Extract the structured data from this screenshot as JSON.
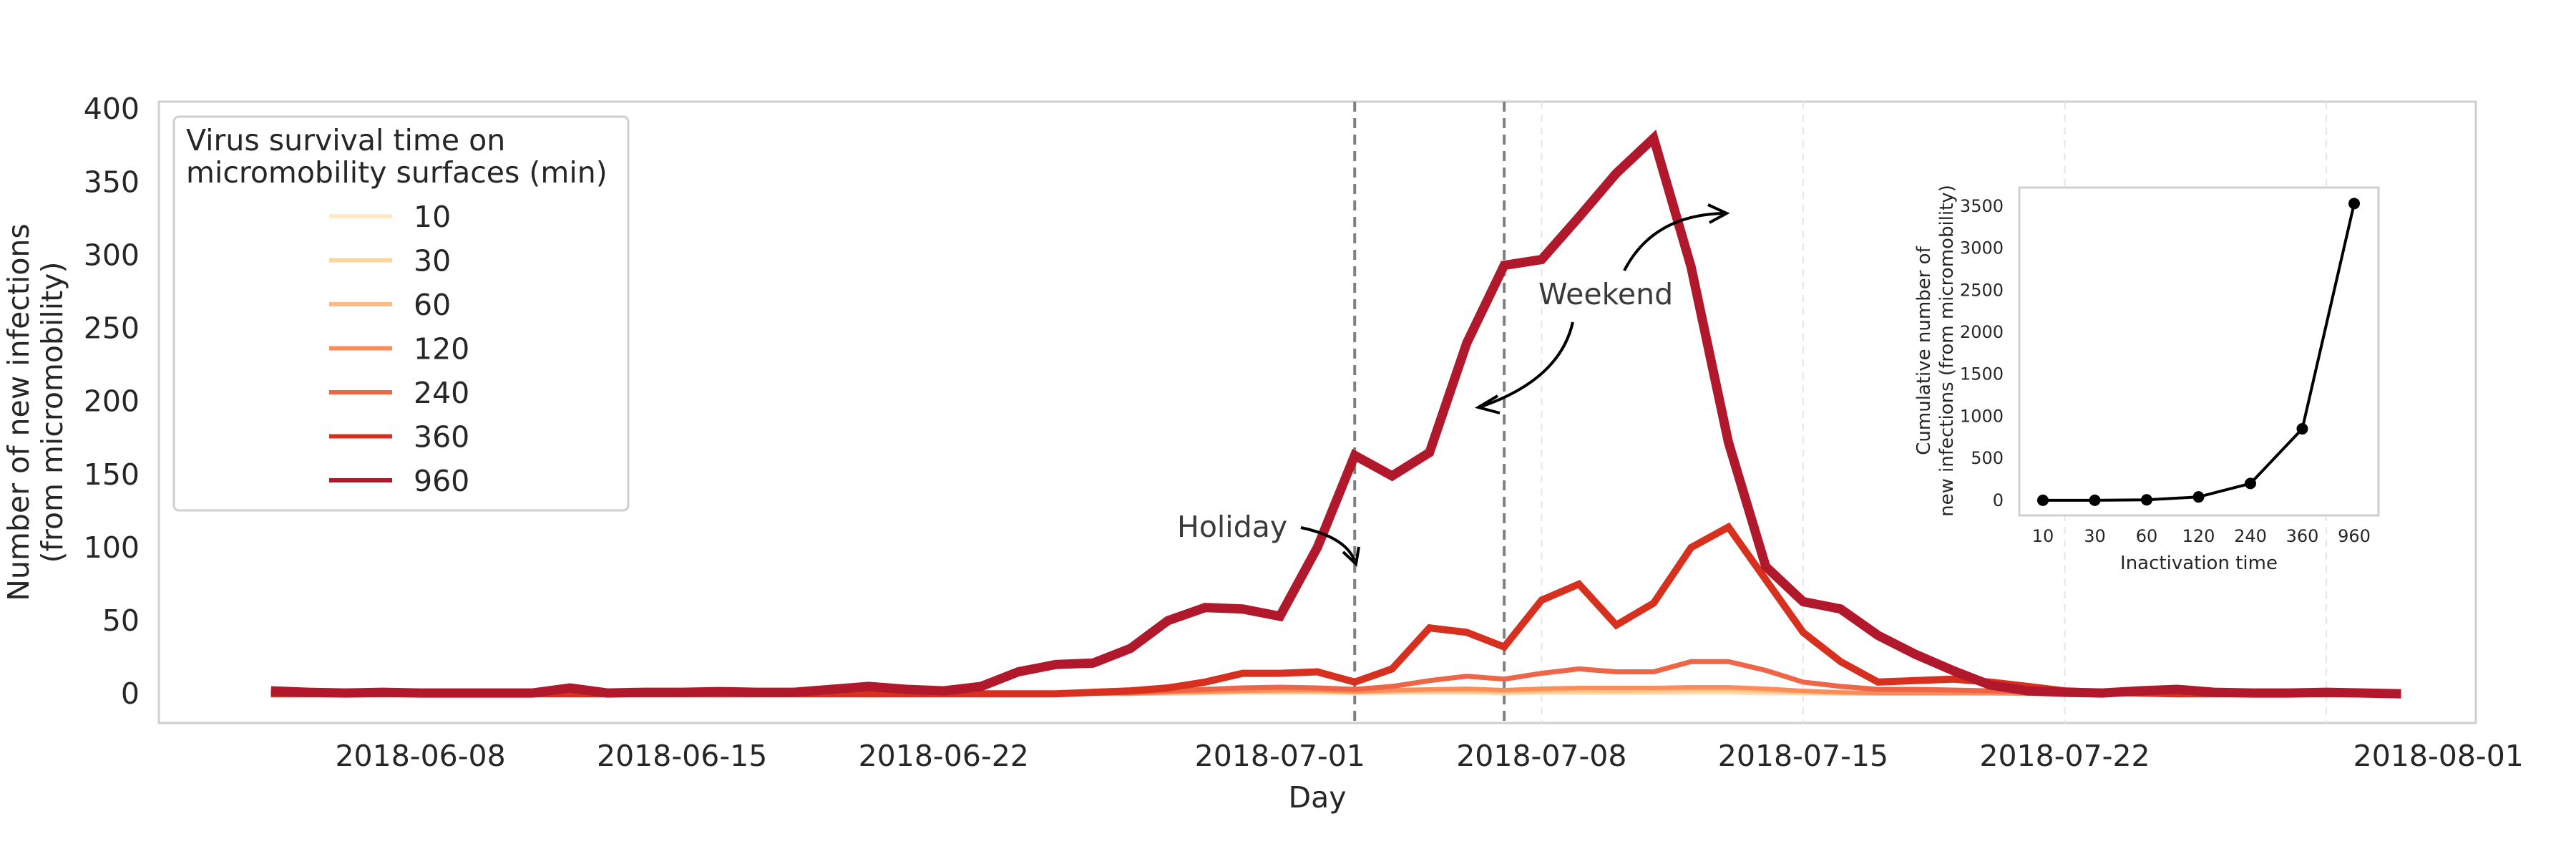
{
  "chart_data": [
    {
      "type": "line",
      "xlabel": "Day",
      "ylabel_lines": [
        "Number of new infections",
        "(from micromobility)"
      ],
      "ylim": [
        -20,
        405
      ],
      "xlim": [
        "2018-06-01",
        "2018-08-02"
      ],
      "yticks": [
        0,
        50,
        100,
        150,
        200,
        250,
        300,
        350,
        400
      ],
      "xticks": [
        "2018-06-08",
        "2018-06-15",
        "2018-06-22",
        "2018-07-01",
        "2018-07-08",
        "2018-07-15",
        "2018-07-22",
        "2018-08-01"
      ],
      "grid": "off",
      "legend": {
        "placement": "top-left",
        "title_lines": [
          "Virus survival time on",
          "micromobility surfaces (min)"
        ]
      },
      "x": [
        "2018-06-04",
        "2018-06-05",
        "2018-06-06",
        "2018-06-07",
        "2018-06-08",
        "2018-06-09",
        "2018-06-10",
        "2018-06-11",
        "2018-06-12",
        "2018-06-13",
        "2018-06-14",
        "2018-06-15",
        "2018-06-16",
        "2018-06-17",
        "2018-06-18",
        "2018-06-19",
        "2018-06-20",
        "2018-06-21",
        "2018-06-22",
        "2018-06-23",
        "2018-06-24",
        "2018-06-25",
        "2018-06-26",
        "2018-06-27",
        "2018-06-28",
        "2018-06-29",
        "2018-06-30",
        "2018-07-01",
        "2018-07-02",
        "2018-07-03",
        "2018-07-04",
        "2018-07-05",
        "2018-07-06",
        "2018-07-07",
        "2018-07-08",
        "2018-07-09",
        "2018-07-10",
        "2018-07-11",
        "2018-07-12",
        "2018-07-13",
        "2018-07-14",
        "2018-07-15",
        "2018-07-16",
        "2018-07-17",
        "2018-07-18",
        "2018-07-19",
        "2018-07-20",
        "2018-07-21",
        "2018-07-22",
        "2018-07-23",
        "2018-07-24",
        "2018-07-25",
        "2018-07-26",
        "2018-07-27",
        "2018-07-28",
        "2018-07-29",
        "2018-07-30",
        "2018-07-31"
      ],
      "series": [
        {
          "name": "10",
          "color": "#fee8c8",
          "width": 5,
          "values": [
            0,
            0,
            0,
            0,
            0,
            0,
            0,
            0,
            0,
            0,
            0,
            0,
            0,
            0,
            0,
            0,
            0,
            0,
            0,
            0,
            0,
            0,
            0,
            0,
            0,
            0,
            0.5,
            0.5,
            0.5,
            0,
            0.5,
            0.5,
            0.5,
            0,
            0.5,
            0.5,
            0.5,
            0.5,
            0.5,
            0.5,
            0,
            0,
            0,
            0,
            0,
            0,
            0,
            0,
            0,
            0,
            0,
            0,
            0,
            0,
            0,
            0,
            0,
            0
          ]
        },
        {
          "name": "30",
          "color": "#fdd49e",
          "width": 5,
          "values": [
            0,
            0,
            0,
            0,
            0,
            0,
            0,
            0,
            0,
            0,
            0,
            0,
            0,
            0,
            0,
            0,
            0,
            0,
            0,
            0,
            0,
            0,
            0,
            0,
            0,
            0.5,
            1,
            1,
            1,
            0.5,
            1,
            1,
            1,
            0.5,
            1,
            1,
            1,
            1,
            1.5,
            1.5,
            1,
            0.5,
            0,
            0,
            0,
            0,
            0,
            0,
            0,
            0,
            0,
            0,
            0,
            0,
            0,
            0,
            0,
            0
          ]
        },
        {
          "name": "60",
          "color": "#fdbb84",
          "width": 5,
          "values": [
            0,
            0,
            0,
            0,
            0,
            0,
            0,
            0,
            0,
            0,
            0,
            0,
            0,
            0,
            0,
            0,
            0,
            0,
            0,
            0,
            0,
            0,
            0,
            0,
            0.5,
            1,
            1.5,
            1.5,
            1.5,
            1,
            1.5,
            2,
            2,
            1.5,
            2,
            2.5,
            2,
            2.5,
            3,
            3,
            2,
            1,
            0.5,
            0,
            0,
            0,
            0,
            0,
            0,
            0,
            0,
            0,
            0,
            0,
            0,
            0,
            0,
            0
          ]
        },
        {
          "name": "120",
          "color": "#fc8d59",
          "width": 6,
          "values": [
            0,
            0,
            0,
            0,
            0,
            0,
            0,
            0,
            0,
            0,
            0,
            0,
            0,
            0,
            0,
            0,
            0,
            0,
            0,
            0,
            0,
            0,
            0,
            0,
            1,
            1.5,
            2,
            2.5,
            2.5,
            1.5,
            2.5,
            3,
            3.5,
            2.5,
            3.5,
            4,
            4,
            4,
            4.5,
            4.5,
            3.5,
            2,
            1,
            0.5,
            0.5,
            0.5,
            0.5,
            0,
            0,
            0,
            0,
            0,
            0,
            0,
            0,
            0,
            0,
            0
          ]
        },
        {
          "name": "240",
          "color": "#ef6548",
          "width": 7,
          "values": [
            0,
            0,
            0,
            0,
            0,
            0,
            0,
            0,
            0,
            0,
            0,
            0,
            0,
            0,
            0,
            0,
            0,
            0,
            0,
            0,
            0,
            0,
            0.5,
            1,
            2,
            3,
            4,
            4.5,
            4,
            3,
            5,
            9,
            12,
            10,
            14,
            17,
            15,
            15,
            22,
            22,
            16,
            8,
            5,
            3,
            3,
            2.5,
            2,
            1.5,
            1,
            0.5,
            0,
            0,
            0,
            0,
            0,
            0,
            0,
            0
          ]
        },
        {
          "name": "360",
          "color": "#d7301f",
          "width": 10,
          "values": [
            0,
            0,
            0,
            0,
            0,
            0,
            0,
            0,
            0,
            0,
            0,
            0,
            0,
            0,
            0,
            0,
            0,
            0,
            0,
            0,
            0,
            0,
            1,
            2,
            4,
            8,
            14,
            14,
            15,
            8,
            17,
            45,
            42,
            32,
            64,
            75,
            47,
            62,
            100,
            114,
            78,
            42,
            22,
            8,
            9,
            10,
            8,
            5,
            2,
            1,
            0.5,
            0,
            0,
            0,
            0,
            0,
            0,
            0
          ]
        },
        {
          "name": "960",
          "color": "#b2182b",
          "width": 13,
          "values": [
            2,
            1,
            0.5,
            1,
            0.5,
            0.5,
            0.5,
            0.5,
            4,
            0.5,
            1,
            1,
            1.5,
            1,
            1,
            3,
            5,
            3,
            2,
            5,
            15,
            20,
            21,
            31,
            50,
            59,
            58,
            53,
            100,
            163,
            149,
            165,
            240,
            293,
            297,
            326,
            356,
            380,
            292,
            172,
            87,
            63,
            58,
            40,
            27,
            16,
            6,
            2,
            1,
            0.5,
            2,
            3,
            1,
            0.5,
            0.5,
            1,
            0.5,
            0
          ]
        }
      ],
      "vlines": [
        "2018-07-03",
        "2018-07-07"
      ],
      "annotations": {
        "holiday": "Holiday",
        "weekend": "Weekend"
      }
    },
    {
      "type": "line",
      "xlabel": "Inactivation time",
      "ylabel_lines": [
        "Cumulative number of",
        "new infections (from micromobility)"
      ],
      "categories": [
        "10",
        "30",
        "60",
        "120",
        "240",
        "360",
        "960"
      ],
      "values": [
        0,
        0,
        5,
        40,
        200,
        850,
        3530
      ],
      "yticks": [
        0,
        500,
        1000,
        1500,
        2000,
        2500,
        3000,
        3500
      ],
      "ylim": [
        -180,
        3720
      ],
      "grid": "off",
      "color": "#000000"
    }
  ]
}
